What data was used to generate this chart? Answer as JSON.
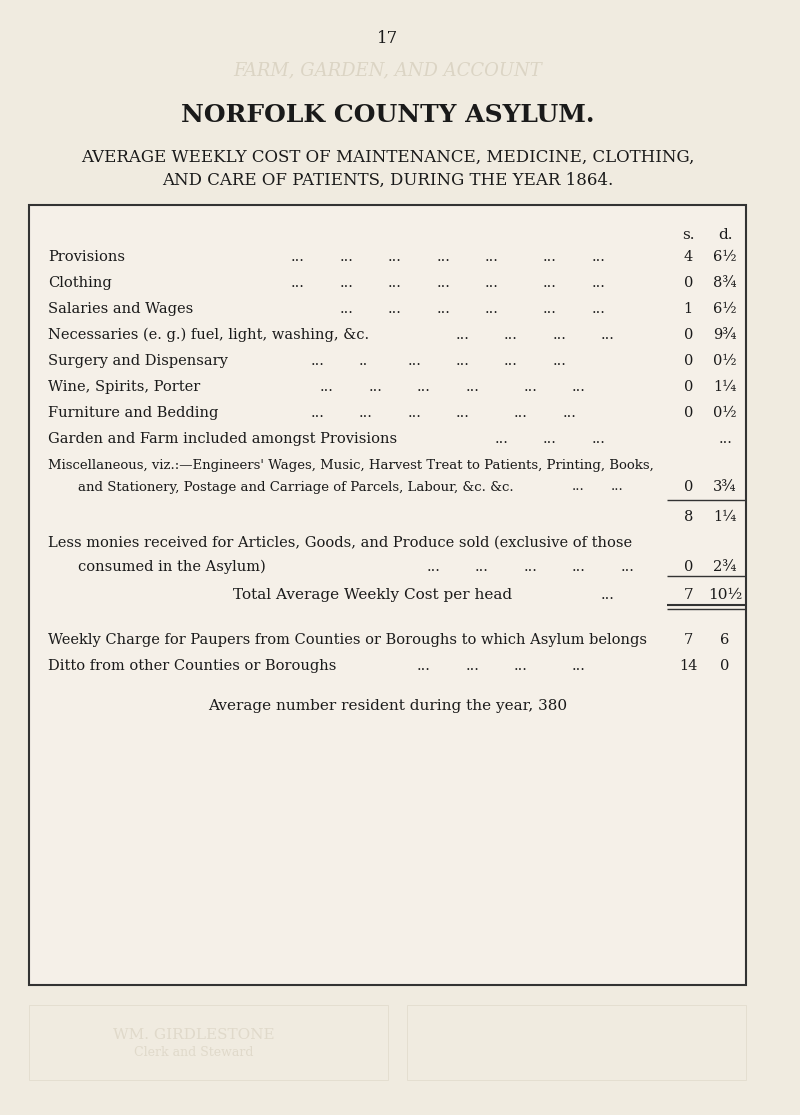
{
  "page_number": "17",
  "main_title": "NORFOLK COUNTY ASYLUM.",
  "subtitle_line1": "AVERAGE WEEKLY COST OF MAINTENANCE, MEDICINE, CLOTHING,",
  "subtitle_line2": "AND CARE OF PATIENTS, DURING THE YEAR 1864.",
  "col_header_s": "s.",
  "col_header_d": "d.",
  "rows": [
    {
      "label": "Provisions",
      "dots": "...          ...          ...          ...          ...          ...          ...",
      "s": "4",
      "d": "6½"
    },
    {
      "label": "Clothing",
      "dots": "...          ...          ...          ...          ...          ...          ...",
      "s": "0",
      "d": "8¾"
    },
    {
      "label": "Salaries and Wages",
      "dots": "...          ...          ...          ...          ...          ...          ...",
      "s": "1",
      "d": "6½"
    },
    {
      "label": "Necessaries (e. g.) fuel, light, washing, &c.",
      "dots": "...          ...          ...          ...          ...",
      "s": "0",
      "d": "9¾"
    },
    {
      "label": "Surgery and Dispensary",
      "dots": "...          ..          ...          ...          ...          ...",
      "s": "0",
      "d": "0½"
    },
    {
      "label": "Wine, Spirits, Porter",
      "dots": "...          ...          ...          ...          ...          ...",
      "s": "0",
      "d": "1¼"
    },
    {
      "label": "Furniture and Bedding",
      "dots": "...          ...          ...          ...          ...          ...",
      "s": "0",
      "d": "0½"
    },
    {
      "label": "Garden and Farm included amongst Provisions",
      "dots": "...          ...          ...",
      "s": "",
      "d": "..."
    },
    {
      "label": "Miscellaneous, viz.:—Engineers' Wages, Music, Harvest Treat to Patients, Printing, Books,",
      "dots": "",
      "s": "",
      "d": ""
    },
    {
      "label": "    and Stationery, Postage and Carriage of Parcels, Labour, &c. &c.",
      "dots": "...          ...",
      "s": "0",
      "d": "3¾"
    }
  ],
  "subtotal_s": "8",
  "subtotal_d": "1¼",
  "less_label": "Less monies received for Articles, Goods, and Produce sold (exclusive of those",
  "less_label2": "    consumed in the Asylum)",
  "less_dots": "...          ...          ...          ...          ...",
  "less_s": "0",
  "less_d": "2¾",
  "total_label": "Total Average Weekly Cost per head",
  "total_dots": "...",
  "total_s": "7",
  "total_d": "10½",
  "extra1_label": "Weekly Charge for Paupers from Counties or Boroughs to which Asylum belongs",
  "extra1_s": "7",
  "extra1_d": "6",
  "extra2_label": "Ditto from other Counties or Boroughs",
  "extra2_dots": "...          ...          ...          ...",
  "extra2_s": "14",
  "extra2_d": "0",
  "avg_label": "Average number resident during the year, 380",
  "bg_color": "#f0ebe0",
  "box_bg": "#f5f0e8",
  "text_color": "#1a1a1a",
  "watermark_text1": "FARM, GARDEN, AND ACCOUNT",
  "watermark_text2": "NORFOLK COUNTY ASYLUM.",
  "watermark_text3": "WM. GIRDLESTONE",
  "watermark_text4": "Clerk and Steward"
}
